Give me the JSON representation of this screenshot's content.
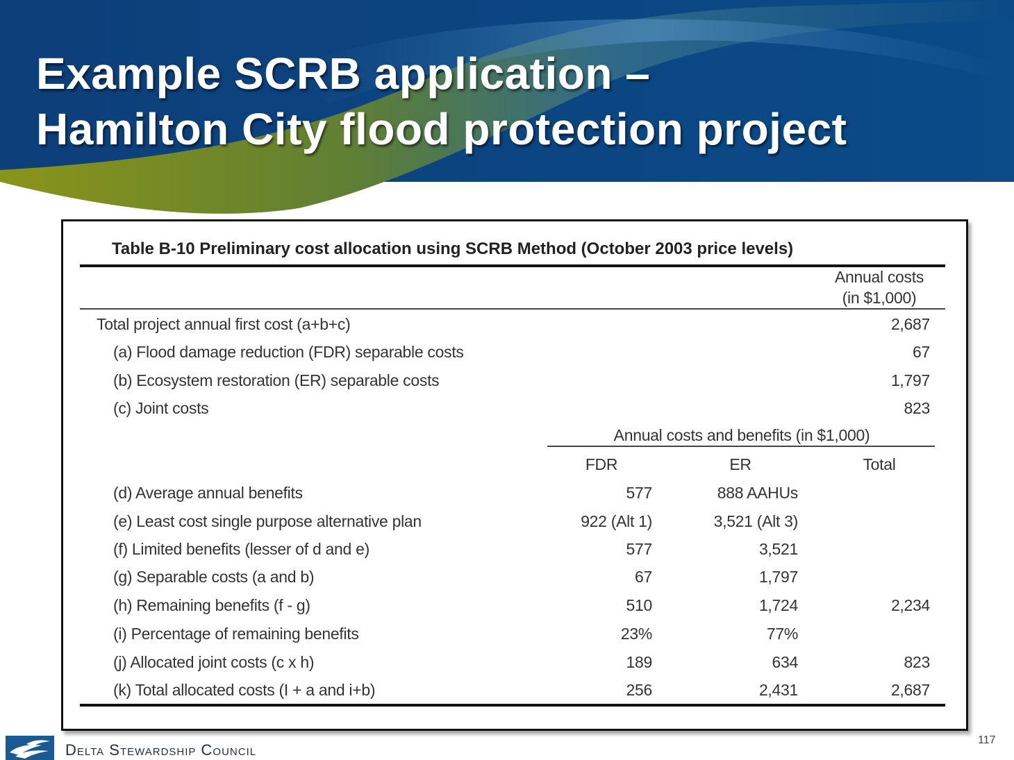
{
  "slide": {
    "title_line1": "Example SCRB application –",
    "title_line2": "Hamilton City flood protection project",
    "page_number": "117",
    "organization": "Delta Stewardship Council"
  },
  "colors": {
    "banner_blue": "#0b4a86",
    "banner_green": "#7a8a1c",
    "title_text": "#ffffff"
  },
  "table": {
    "caption": "Table B-10 Preliminary cost allocation using SCRB Method (October 2003 price levels)",
    "annual_costs_header": [
      "Annual costs",
      "(in $1,000)"
    ],
    "top_rows": [
      {
        "label": "Total project annual first cost (a+b+c)",
        "value": "2,687",
        "indent": false
      },
      {
        "label": "(a) Flood damage reduction (FDR) separable costs",
        "value": "67",
        "indent": true
      },
      {
        "label": "(b) Ecosystem restoration (ER) separable costs",
        "value": "1,797",
        "indent": true
      },
      {
        "label": "(c) Joint costs",
        "value": "823",
        "indent": true
      }
    ],
    "group_header": "Annual costs and benefits (in $1,000)",
    "columns": [
      "FDR",
      "ER",
      "Total"
    ],
    "rows": [
      {
        "label": "(d) Average annual benefits",
        "fdr": "577",
        "er": "888 AAHUs",
        "total": ""
      },
      {
        "label": "(e) Least cost single purpose alternative plan",
        "fdr": "922 (Alt 1)",
        "er": "3,521 (Alt 3)",
        "total": ""
      },
      {
        "label": "(f) Limited benefits (lesser of d and e)",
        "fdr": "577",
        "er": "3,521",
        "total": ""
      },
      {
        "label": "(g) Separable costs (a and b)",
        "fdr": "67",
        "er": "1,797",
        "total": ""
      },
      {
        "label": "(h) Remaining benefits (f - g)",
        "fdr": "510",
        "er": "1,724",
        "total": "2,234"
      },
      {
        "label": "(i) Percentage of remaining benefits",
        "fdr": "23%",
        "er": "77%",
        "total": ""
      },
      {
        "label": "(j) Allocated joint costs (c x h)",
        "fdr": "189",
        "er": "634",
        "total": "823"
      },
      {
        "label": "(k) Total allocated costs (I + a and i+b)",
        "fdr": "256",
        "er": "2,431",
        "total": "2,687"
      }
    ]
  }
}
